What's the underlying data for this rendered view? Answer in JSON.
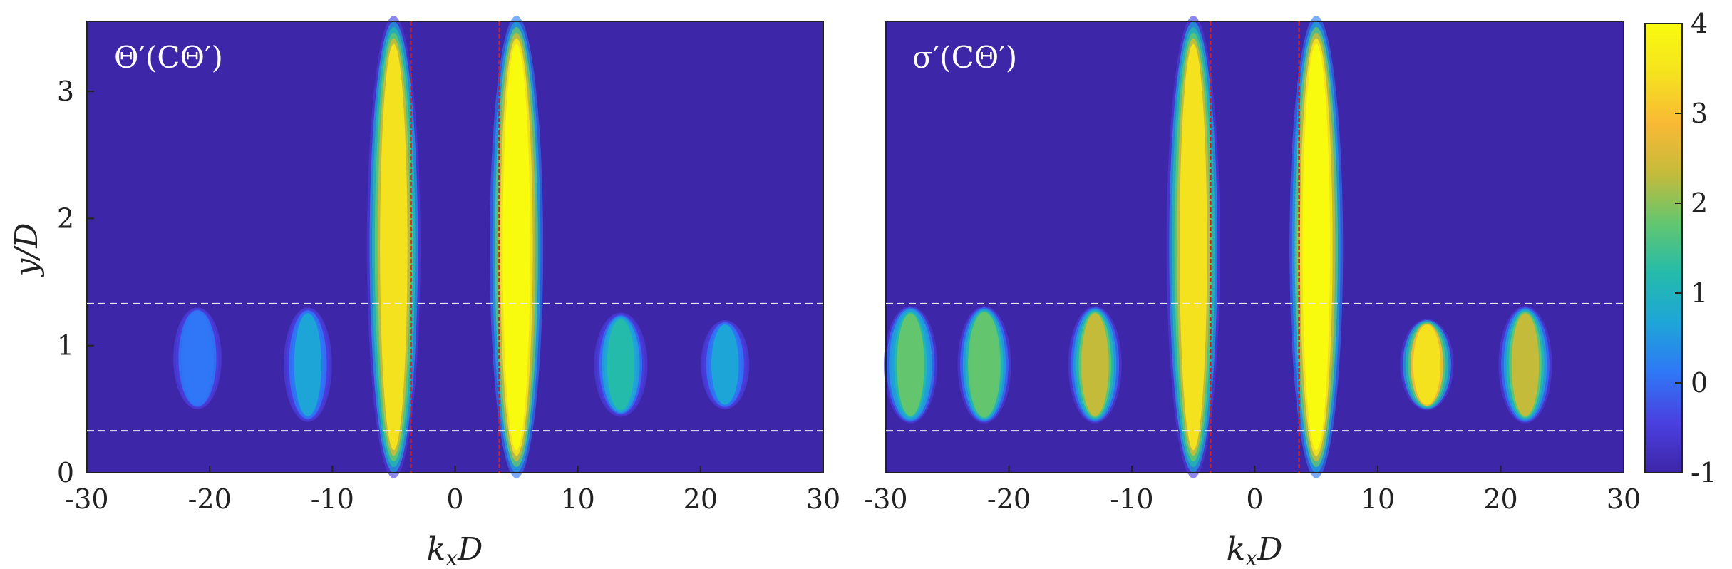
{
  "chart_data": [
    {
      "type": "heatmap",
      "panel_label": "Θ′(CΘ′)",
      "xlabel": "kxD",
      "ylabel": "y/D",
      "xlim": [
        -30,
        30
      ],
      "ylim": [
        0,
        3.55
      ],
      "xticks": [
        "-30",
        "-20",
        "-10",
        "0",
        "10",
        "20",
        "30"
      ],
      "yticks": [
        "0",
        "1",
        "2",
        "3"
      ],
      "reference_lines": {
        "vertical_red_dashed_x": [
          -3.6,
          3.6
        ],
        "horizontal_white_dashed_y": [
          0.33,
          1.33
        ]
      },
      "features": [
        {
          "x": -5.0,
          "y_min": 0.0,
          "y_max": 3.55,
          "peak": 3.3,
          "description_value": "strong ridge"
        },
        {
          "x": 5.0,
          "y_min": 0.0,
          "y_max": 3.55,
          "peak": 4.0,
          "description_value": "strongest ridge"
        },
        {
          "x": 13.5,
          "y_min": 0.45,
          "y_max": 1.25,
          "peak": 1.2
        },
        {
          "x": 22.0,
          "y_min": 0.5,
          "y_max": 1.2,
          "peak": 0.4
        },
        {
          "x": -12.0,
          "y_min": 0.4,
          "y_max": 1.3,
          "peak": 0.6
        },
        {
          "x": -21.0,
          "y_min": 0.5,
          "y_max": 1.3,
          "peak": 0.3
        }
      ]
    },
    {
      "type": "heatmap",
      "panel_label": "σ′(CΘ′)",
      "xlabel": "kxD",
      "ylabel": "",
      "xlim": [
        -30,
        30
      ],
      "ylim": [
        0,
        3.55
      ],
      "xticks": [
        "-30",
        "-20",
        "-10",
        "0",
        "10",
        "20",
        "30"
      ],
      "reference_lines": {
        "vertical_red_dashed_x": [
          -3.6,
          3.6
        ],
        "horizontal_white_dashed_y": [
          0.33,
          1.33
        ]
      },
      "features": [
        {
          "x": -5.0,
          "y_min": 0.0,
          "y_max": 3.55,
          "peak": 3.2
        },
        {
          "x": 5.0,
          "y_min": 0.0,
          "y_max": 3.55,
          "peak": 4.0
        },
        {
          "x": 14.0,
          "y_min": 0.5,
          "y_max": 1.2,
          "peak": 3.4
        },
        {
          "x": 22.0,
          "y_min": 0.4,
          "y_max": 1.3,
          "peak": 2.2
        },
        {
          "x": -13.0,
          "y_min": 0.4,
          "y_max": 1.3,
          "peak": 2.6
        },
        {
          "x": -22.0,
          "y_min": 0.4,
          "y_max": 1.3,
          "peak": 2.0
        },
        {
          "x": -28.0,
          "y_min": 0.4,
          "y_max": 1.3,
          "peak": 1.8
        }
      ]
    }
  ],
  "colorbar": {
    "min": -1,
    "max": 4,
    "ticks": [
      "-1",
      "0",
      "1",
      "2",
      "3",
      "4"
    ],
    "colormap": [
      "#3e26a8",
      "#4a3fe0",
      "#2f77f6",
      "#1ea5d8",
      "#24bbab",
      "#63c66f",
      "#c5bb3a",
      "#f9b935",
      "#f5e21f",
      "#f9fb0e"
    ]
  },
  "colors": {
    "background": "#3e26a8",
    "reference_vertical": "#d11f1f",
    "reference_horizontal": "#e8e8f0"
  }
}
